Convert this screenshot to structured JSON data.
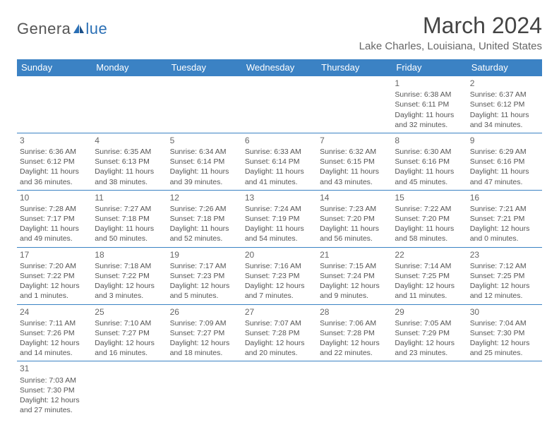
{
  "logo": {
    "text1": "Genera",
    "text2": "lue"
  },
  "title": "March 2024",
  "location": "Lake Charles, Louisiana, United States",
  "colors": {
    "header_bg": "#3b82c4",
    "header_text": "#ffffff",
    "border": "#3b82c4",
    "body_text": "#555555",
    "title_text": "#444444",
    "logo_gray": "#555555",
    "logo_blue": "#2a6fb5"
  },
  "daynames": [
    "Sunday",
    "Monday",
    "Tuesday",
    "Wednesday",
    "Thursday",
    "Friday",
    "Saturday"
  ],
  "weeks": [
    [
      null,
      null,
      null,
      null,
      null,
      {
        "n": "1",
        "sunrise": "6:38 AM",
        "sunset": "6:11 PM",
        "day_h": "11",
        "day_m": "32"
      },
      {
        "n": "2",
        "sunrise": "6:37 AM",
        "sunset": "6:12 PM",
        "day_h": "11",
        "day_m": "34"
      }
    ],
    [
      {
        "n": "3",
        "sunrise": "6:36 AM",
        "sunset": "6:12 PM",
        "day_h": "11",
        "day_m": "36"
      },
      {
        "n": "4",
        "sunrise": "6:35 AM",
        "sunset": "6:13 PM",
        "day_h": "11",
        "day_m": "38"
      },
      {
        "n": "5",
        "sunrise": "6:34 AM",
        "sunset": "6:14 PM",
        "day_h": "11",
        "day_m": "39"
      },
      {
        "n": "6",
        "sunrise": "6:33 AM",
        "sunset": "6:14 PM",
        "day_h": "11",
        "day_m": "41"
      },
      {
        "n": "7",
        "sunrise": "6:32 AM",
        "sunset": "6:15 PM",
        "day_h": "11",
        "day_m": "43"
      },
      {
        "n": "8",
        "sunrise": "6:30 AM",
        "sunset": "6:16 PM",
        "day_h": "11",
        "day_m": "45"
      },
      {
        "n": "9",
        "sunrise": "6:29 AM",
        "sunset": "6:16 PM",
        "day_h": "11",
        "day_m": "47"
      }
    ],
    [
      {
        "n": "10",
        "sunrise": "7:28 AM",
        "sunset": "7:17 PM",
        "day_h": "11",
        "day_m": "49"
      },
      {
        "n": "11",
        "sunrise": "7:27 AM",
        "sunset": "7:18 PM",
        "day_h": "11",
        "day_m": "50"
      },
      {
        "n": "12",
        "sunrise": "7:26 AM",
        "sunset": "7:18 PM",
        "day_h": "11",
        "day_m": "52"
      },
      {
        "n": "13",
        "sunrise": "7:24 AM",
        "sunset": "7:19 PM",
        "day_h": "11",
        "day_m": "54"
      },
      {
        "n": "14",
        "sunrise": "7:23 AM",
        "sunset": "7:20 PM",
        "day_h": "11",
        "day_m": "56"
      },
      {
        "n": "15",
        "sunrise": "7:22 AM",
        "sunset": "7:20 PM",
        "day_h": "11",
        "day_m": "58"
      },
      {
        "n": "16",
        "sunrise": "7:21 AM",
        "sunset": "7:21 PM",
        "day_h": "12",
        "day_m": "0"
      }
    ],
    [
      {
        "n": "17",
        "sunrise": "7:20 AM",
        "sunset": "7:22 PM",
        "day_h": "12",
        "day_m": "1"
      },
      {
        "n": "18",
        "sunrise": "7:18 AM",
        "sunset": "7:22 PM",
        "day_h": "12",
        "day_m": "3"
      },
      {
        "n": "19",
        "sunrise": "7:17 AM",
        "sunset": "7:23 PM",
        "day_h": "12",
        "day_m": "5"
      },
      {
        "n": "20",
        "sunrise": "7:16 AM",
        "sunset": "7:23 PM",
        "day_h": "12",
        "day_m": "7"
      },
      {
        "n": "21",
        "sunrise": "7:15 AM",
        "sunset": "7:24 PM",
        "day_h": "12",
        "day_m": "9"
      },
      {
        "n": "22",
        "sunrise": "7:14 AM",
        "sunset": "7:25 PM",
        "day_h": "12",
        "day_m": "11"
      },
      {
        "n": "23",
        "sunrise": "7:12 AM",
        "sunset": "7:25 PM",
        "day_h": "12",
        "day_m": "12"
      }
    ],
    [
      {
        "n": "24",
        "sunrise": "7:11 AM",
        "sunset": "7:26 PM",
        "day_h": "12",
        "day_m": "14"
      },
      {
        "n": "25",
        "sunrise": "7:10 AM",
        "sunset": "7:27 PM",
        "day_h": "12",
        "day_m": "16"
      },
      {
        "n": "26",
        "sunrise": "7:09 AM",
        "sunset": "7:27 PM",
        "day_h": "12",
        "day_m": "18"
      },
      {
        "n": "27",
        "sunrise": "7:07 AM",
        "sunset": "7:28 PM",
        "day_h": "12",
        "day_m": "20"
      },
      {
        "n": "28",
        "sunrise": "7:06 AM",
        "sunset": "7:28 PM",
        "day_h": "12",
        "day_m": "22"
      },
      {
        "n": "29",
        "sunrise": "7:05 AM",
        "sunset": "7:29 PM",
        "day_h": "12",
        "day_m": "23"
      },
      {
        "n": "30",
        "sunrise": "7:04 AM",
        "sunset": "7:30 PM",
        "day_h": "12",
        "day_m": "25"
      }
    ],
    [
      {
        "n": "31",
        "sunrise": "7:03 AM",
        "sunset": "7:30 PM",
        "day_h": "12",
        "day_m": "27"
      },
      null,
      null,
      null,
      null,
      null,
      null
    ]
  ]
}
